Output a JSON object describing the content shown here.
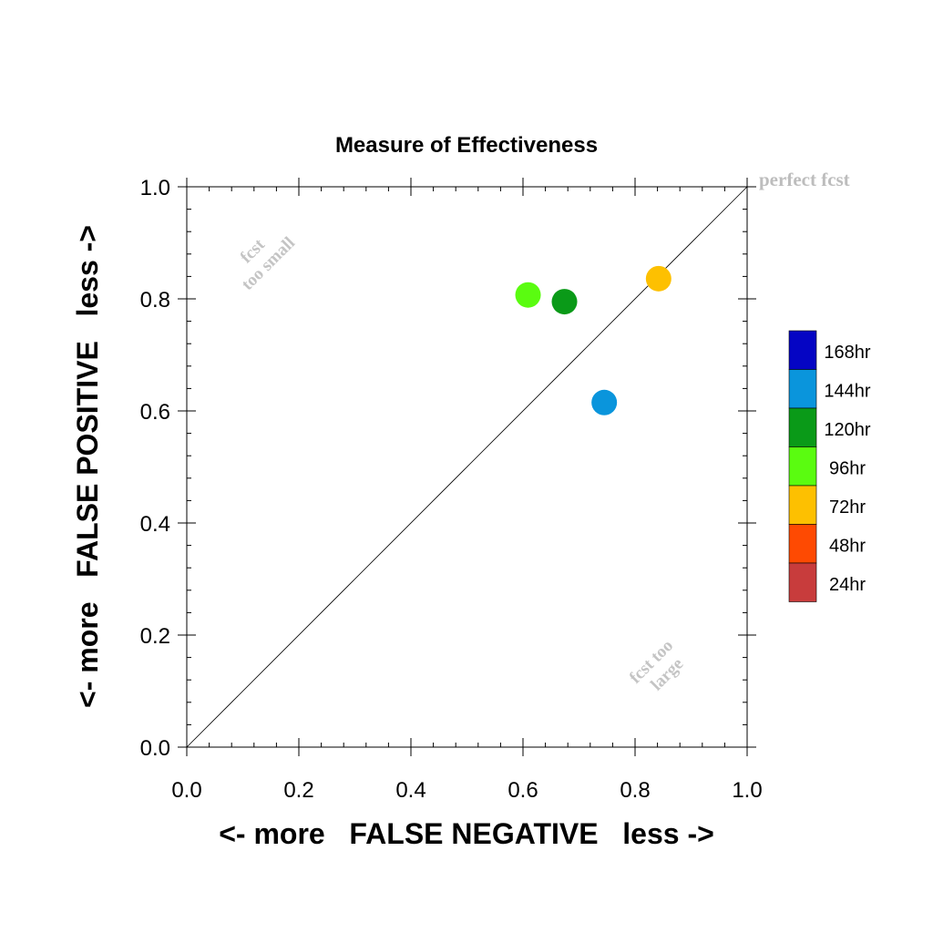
{
  "chart_data": {
    "type": "scatter",
    "title": "Measure of Effectiveness",
    "xlabel": "<- more   FALSE NEGATIVE   less ->",
    "ylabel": "<- more   FALSE POSITIVE   less ->",
    "xlim": [
      0.0,
      1.0
    ],
    "ylim": [
      0.0,
      1.0
    ],
    "xticks": [
      "0.0",
      "0.2",
      "0.4",
      "0.6",
      "0.8",
      "1.0"
    ],
    "yticks": [
      "0.0",
      "0.2",
      "0.4",
      "0.6",
      "0.8",
      "1.0"
    ],
    "grid": false,
    "diagonal_line": true,
    "annotations": {
      "perfect": "perfect fcst",
      "too_small": [
        "fcst",
        "too small"
      ],
      "too_large": [
        "fcst too",
        "large"
      ]
    },
    "series": [
      {
        "name": "144hr",
        "x": 0.745,
        "y": 0.615,
        "color": "#0a95dc"
      },
      {
        "name": "120hr",
        "x": 0.674,
        "y": 0.795,
        "color": "#0a9a18"
      },
      {
        "name": "96hr",
        "x": 0.609,
        "y": 0.807,
        "color": "#5afc10"
      },
      {
        "name": "72hr",
        "x": 0.842,
        "y": 0.836,
        "color": "#fdc001"
      }
    ],
    "legend": {
      "placement": "right",
      "entries": [
        {
          "label": "168hr",
          "color": "#0505c4"
        },
        {
          "label": "144hr",
          "color": "#0a95dc"
        },
        {
          "label": "120hr",
          "color": "#0a9a18"
        },
        {
          "label": "96hr",
          "color": "#5afc10"
        },
        {
          "label": "72hr",
          "color": "#fdc001"
        },
        {
          "label": "48hr",
          "color": "#fe4a02"
        },
        {
          "label": "24hr",
          "color": "#c83c3c"
        }
      ]
    }
  }
}
